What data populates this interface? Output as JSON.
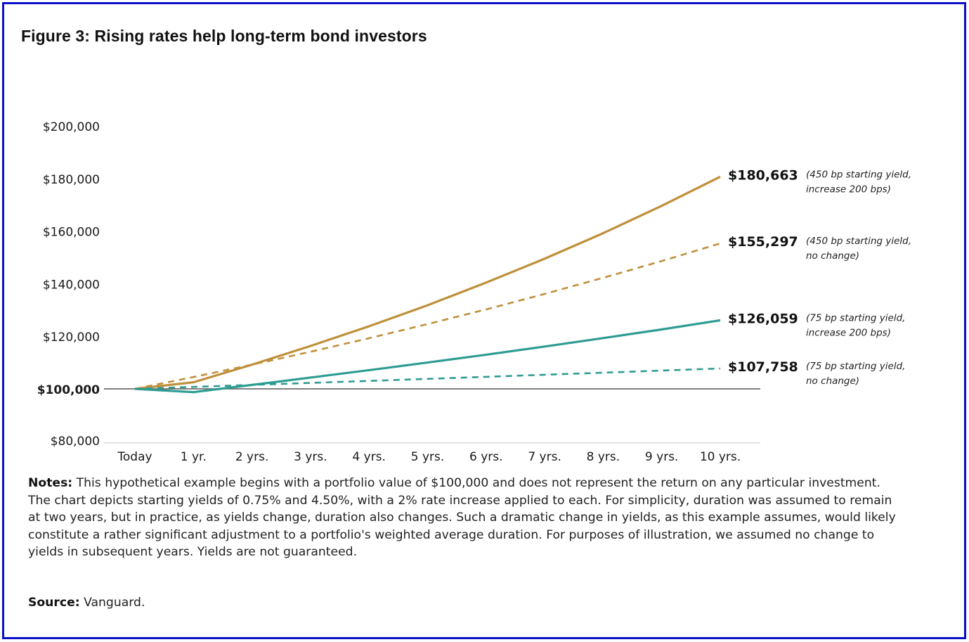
{
  "title": "Figure 3: Rising rates help long-term bond investors",
  "colors": {
    "gold": "#BF8F3A",
    "teal": "#2E9C92",
    "frame": "#0A10C8",
    "baseline": "#555555",
    "gridline": "#e3e3e3"
  },
  "chart_data": {
    "type": "line",
    "title": "Figure 3: Rising rates help long-term bond investors",
    "xlabel": "",
    "ylabel": "",
    "x": [
      "Today",
      "1 yr.",
      "2 yrs.",
      "3 yrs.",
      "4 yrs.",
      "5 yrs.",
      "6 yrs.",
      "7 yrs.",
      "8 yrs.",
      "9 yrs.",
      "10 yrs."
    ],
    "yticks": [
      80000,
      100000,
      120000,
      140000,
      160000,
      180000,
      200000
    ],
    "ytick_labels": [
      "$80,000",
      "$100,000",
      "$120,000",
      "$140,000",
      "$160,000",
      "$180,000",
      "$200,000"
    ],
    "ylim": [
      80000,
      200000
    ],
    "baseline": 100000,
    "grid": false,
    "series": [
      {
        "name": "450 bp starting yield, increase 200 bps",
        "color": "gold",
        "style": "solid",
        "values": [
          100000,
          102500,
          109200,
          116300,
          123800,
          131800,
          140400,
          149500,
          159200,
          169600,
          180663
        ],
        "end_label": "$180,663",
        "note_line1": "(450 bp starting yield,",
        "note_line2": "increase 200 bps)"
      },
      {
        "name": "450 bp starting yield, no change",
        "color": "gold",
        "style": "dashed",
        "values": [
          100000,
          104500,
          109203,
          114117,
          119252,
          124618,
          130226,
          136086,
          142210,
          148610,
          155297
        ],
        "end_label": "$155,297",
        "note_line1": "(450 bp starting yield,",
        "note_line2": "no change)"
      },
      {
        "name": "75 bp starting yield, increase 200 bps",
        "color": "teal",
        "style": "solid",
        "values": [
          100000,
          98750,
          101500,
          104300,
          107100,
          110000,
          113000,
          116100,
          119300,
          122600,
          126059
        ],
        "end_label": "$126,059",
        "note_line1": "(75 bp starting yield,",
        "note_line2": "increase 200 bps)"
      },
      {
        "name": "75 bp starting yield, no change",
        "color": "teal",
        "style": "dashed",
        "values": [
          100000,
          100750,
          101506,
          102267,
          103034,
          103807,
          104585,
          105370,
          106160,
          106956,
          107758
        ],
        "end_label": "$107,758",
        "note_line1": "(75 bp starting yield,",
        "note_line2": "no change)"
      }
    ]
  },
  "notes": {
    "label": "Notes:",
    "text": " This hypothetical example begins with a portfolio value of $100,000 and does not represent the return on any particular investment. The chart depicts starting yields of 0.75% and 4.50%, with a 2% rate increase applied to each. For simplicity, duration was assumed to remain at two years, but in practice, as yields change, duration also changes. Such a dramatic change in yields, as this example assumes, would likely constitute a rather significant adjustment to a portfolio's weighted average duration. For purposes of illustration, we assumed no change to yields in subsequent years. Yields are not guaranteed."
  },
  "source": {
    "label": "Source:",
    "text": " Vanguard."
  }
}
